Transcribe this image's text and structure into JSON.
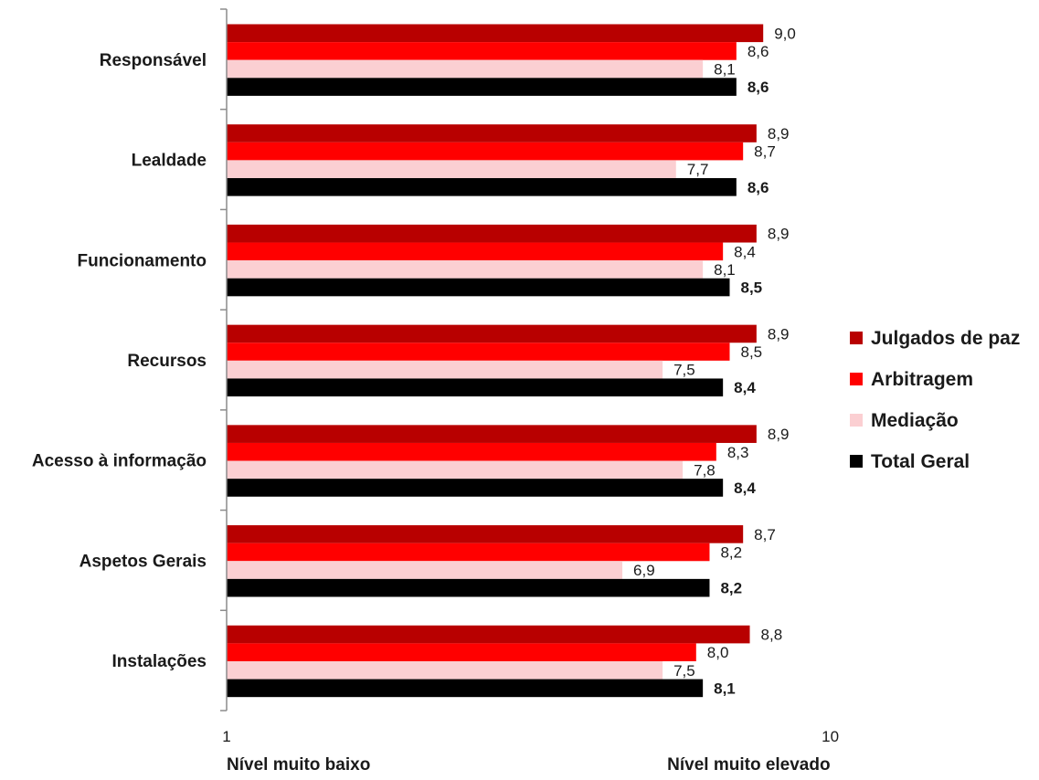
{
  "chart_data": {
    "type": "bar",
    "orientation": "horizontal",
    "categories": [
      "Responsável",
      "Lealdade",
      "Funcionamento",
      "Recursos",
      "Acesso à informação",
      "Aspetos Gerais",
      "Instalações"
    ],
    "series": [
      {
        "name": "Julgados de paz",
        "color": "#b80000",
        "values": [
          9.0,
          8.9,
          8.9,
          8.9,
          8.9,
          8.7,
          8.8
        ],
        "labels": [
          "9,0",
          "8,9",
          "8,9",
          "8,9",
          "8,9",
          "8,7",
          "8,8"
        ]
      },
      {
        "name": "Arbitragem",
        "color": "#ff0000",
        "values": [
          8.6,
          8.7,
          8.4,
          8.5,
          8.3,
          8.2,
          8.0
        ],
        "labels": [
          "8,6",
          "8,7",
          "8,4",
          "8,5",
          "8,3",
          "8,2",
          "8,0"
        ]
      },
      {
        "name": "Mediação",
        "color": "#fbcfd2",
        "values": [
          8.1,
          7.7,
          8.1,
          7.5,
          7.8,
          6.9,
          7.5
        ],
        "labels": [
          "8,1",
          "7,7",
          "8,1",
          "7,5",
          "7,8",
          "6,9",
          "7,5"
        ]
      },
      {
        "name": "Total Geral",
        "color": "#000000",
        "values": [
          8.6,
          8.6,
          8.5,
          8.4,
          8.4,
          8.2,
          8.1
        ],
        "labels": [
          "8,6",
          "8,6",
          "8,5",
          "8,4",
          "8,4",
          "8,2",
          "8,1"
        ],
        "bold_labels": true
      }
    ],
    "xlim": [
      1,
      10
    ],
    "ticks": [
      {
        "value": 1,
        "label": "1"
      },
      {
        "value": 10,
        "label": "10"
      }
    ],
    "axis_captions": {
      "low": "Nível muito baixo",
      "high": "Nível muito elevado"
    },
    "legend_position": "right",
    "grid": false
  }
}
